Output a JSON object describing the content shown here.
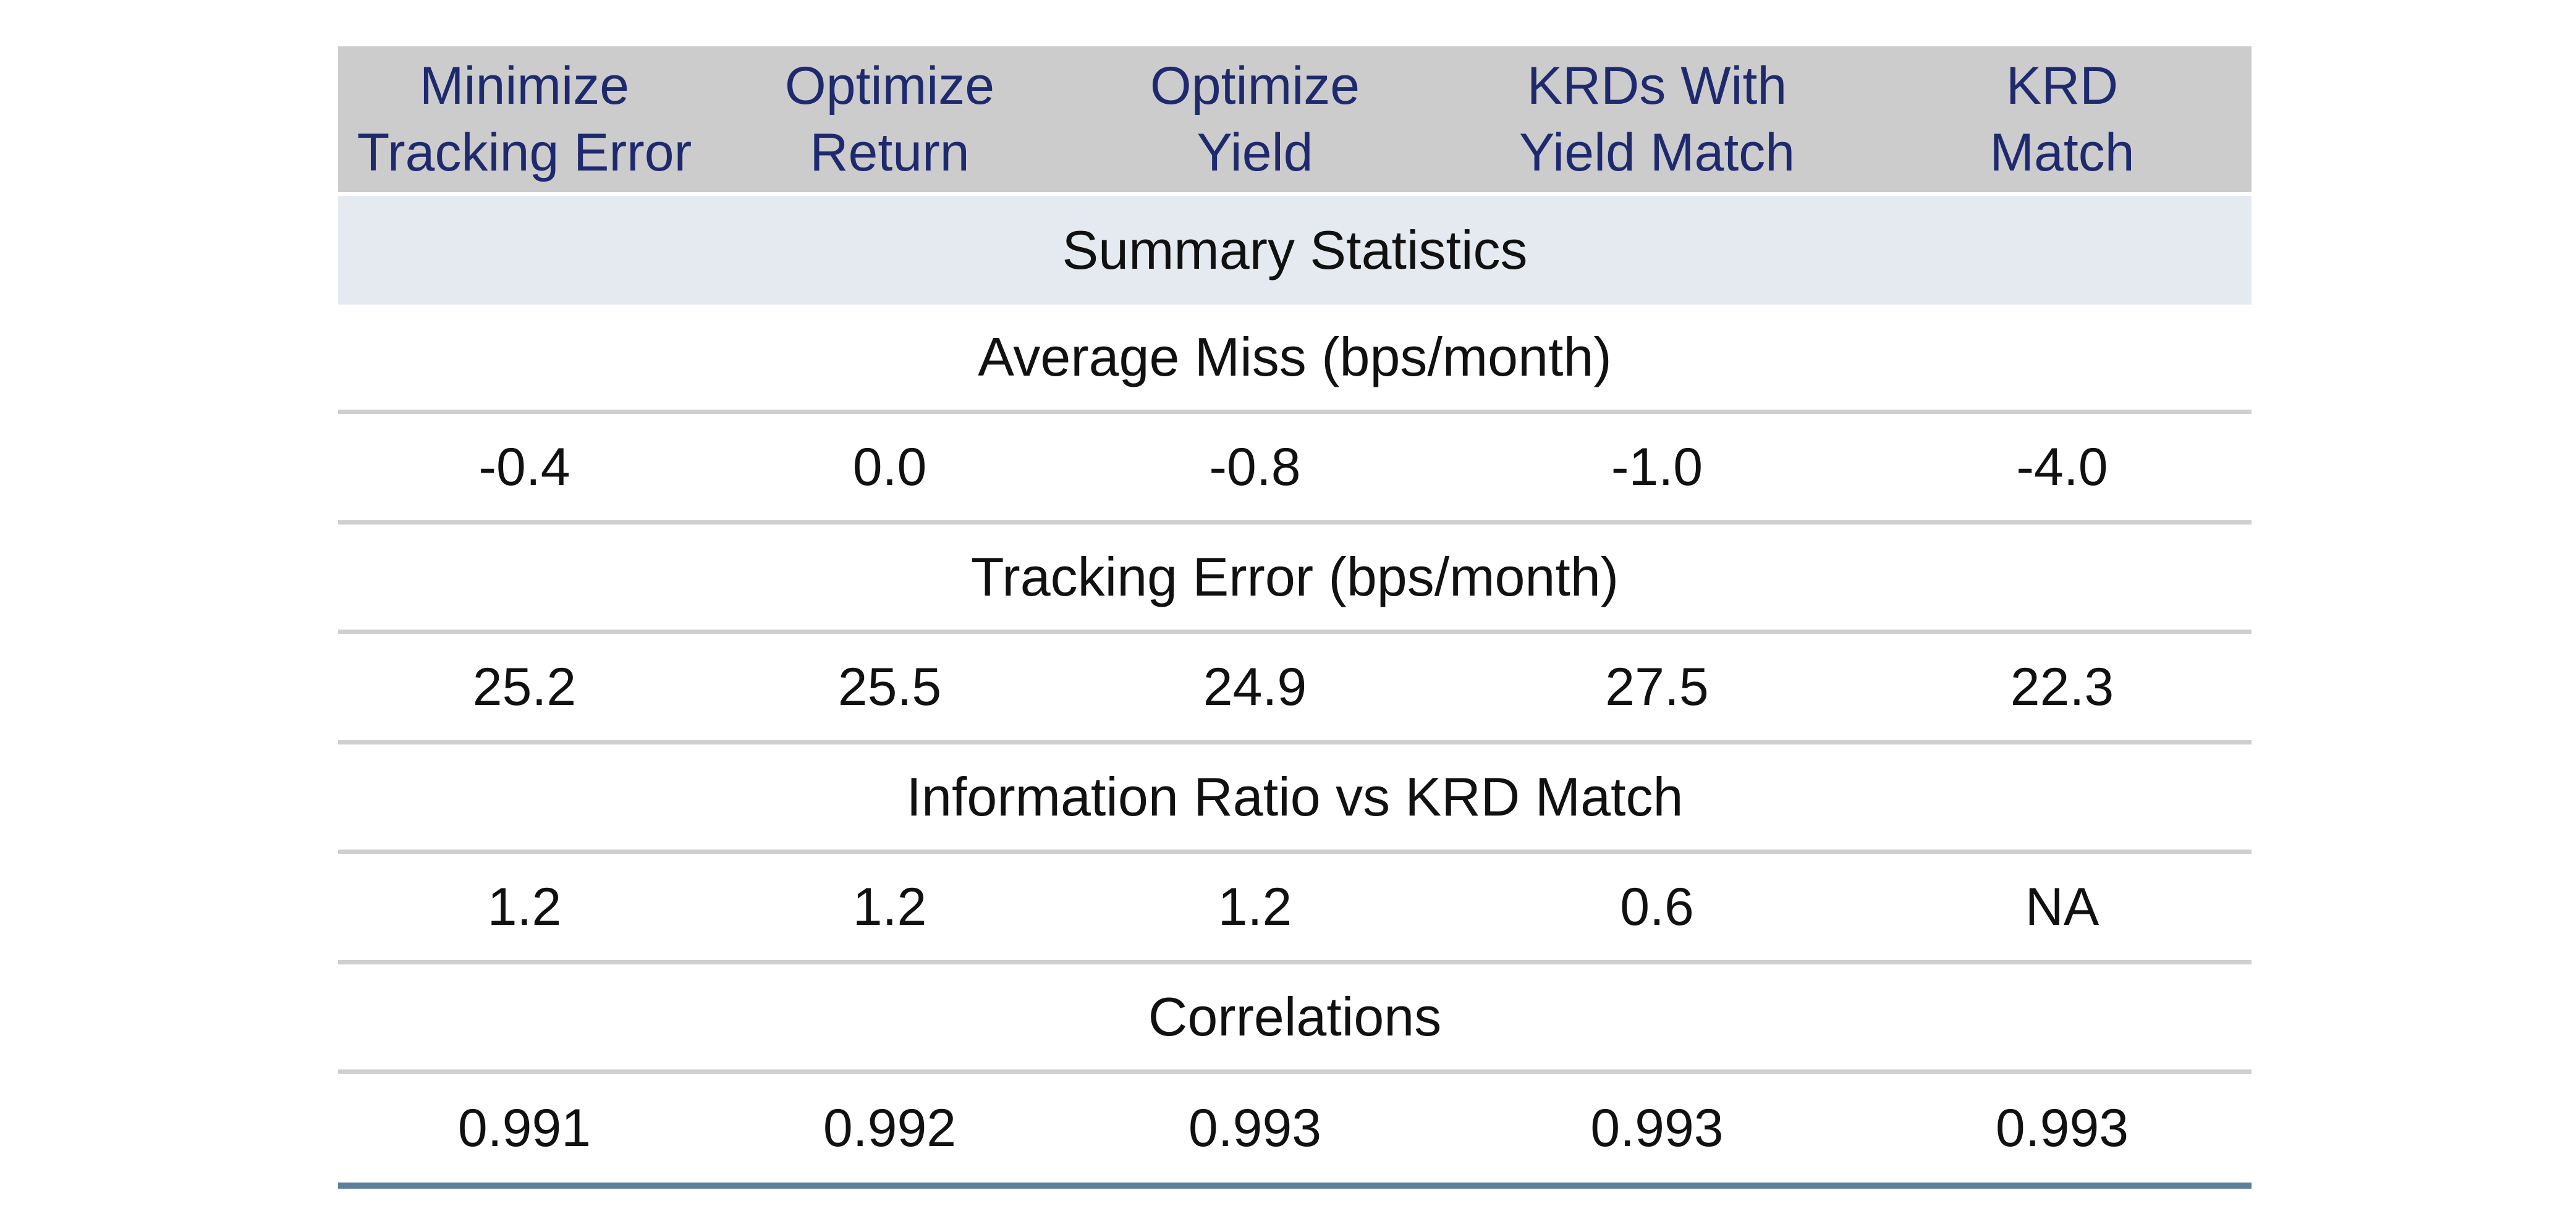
{
  "chart_data": {
    "type": "table",
    "columns": [
      "Minimize\nTracking Error",
      "Optimize\nReturn",
      "Optimize\nYield",
      "KRDs With\nYield Match",
      "KRD\nMatch"
    ],
    "summary_label": "Summary Statistics",
    "sections": [
      {
        "label": "Average Miss (bps/month)",
        "values": [
          "-0.4",
          "0.0",
          "-0.8",
          "-1.0",
          "-4.0"
        ]
      },
      {
        "label": "Tracking Error (bps/month)",
        "values": [
          "25.2",
          "25.5",
          "24.9",
          "27.5",
          "22.3"
        ]
      },
      {
        "label": "Information Ratio vs KRD Match",
        "values": [
          "1.2",
          "1.2",
          "1.2",
          "0.6",
          "NA"
        ]
      },
      {
        "label": "Correlations",
        "values": [
          "0.991",
          "0.992",
          "0.993",
          "0.993",
          "0.993"
        ]
      }
    ],
    "colors": {
      "header_bg": "#cccccc",
      "header_text": "#1f2a6e",
      "summary_bg": "#e4eaf0",
      "divider": "#cfcfcf",
      "bottom_rule": "#5d7f9c"
    }
  }
}
